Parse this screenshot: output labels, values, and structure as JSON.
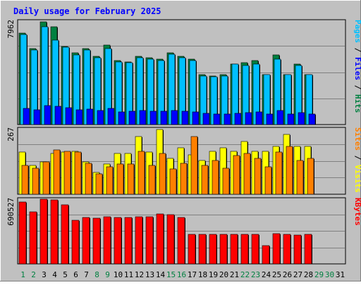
{
  "chart_data": {
    "type": "bar",
    "title": "Daily usage for February 2025",
    "days": [
      "1",
      "2",
      "3",
      "4",
      "5",
      "6",
      "7",
      "8",
      "9",
      "10",
      "11",
      "12",
      "13",
      "14",
      "15",
      "16",
      "17",
      "18",
      "19",
      "20",
      "21",
      "22",
      "23",
      "24",
      "25",
      "26",
      "27",
      "28",
      "29",
      "30",
      "31"
    ],
    "weekend_days": [
      "1",
      "2",
      "8",
      "9",
      "15",
      "16",
      "22",
      "23",
      "29",
      "30"
    ],
    "days_with_data": 28,
    "panels": [
      {
        "name": "hits",
        "max_label": "7962",
        "ymax": 8000,
        "right_label": [
          "Pages",
          "Files",
          "Hits"
        ],
        "series": [
          {
            "name": "Hits",
            "color": "#008040",
            "values": [
              7100,
              5900,
              8000,
              7600,
              6100,
              5600,
              5900,
              5300,
              6200,
              5000,
              4900,
              5300,
              5200,
              5100,
              5600,
              5300,
              5100,
              3900,
              3800,
              3900,
              4700,
              4800,
              5000,
              3900,
              5400,
              3900,
              4700,
              3900
            ]
          },
          {
            "name": "Files",
            "color": "#00C0FF",
            "values": [
              7000,
              5800,
              7600,
              6600,
              6000,
              5400,
              5800,
              5200,
              5900,
              4900,
              4800,
              5200,
              5100,
              5000,
              5500,
              5200,
              5000,
              3800,
              3700,
              3800,
              4700,
              4600,
              4700,
              3900,
              5100,
              3900,
              4600,
              3900
            ]
          },
          {
            "name": "Pages",
            "color": "#0000FF",
            "values": [
              1250,
              1150,
              1500,
              1400,
              1300,
              1150,
              1200,
              1100,
              1250,
              1000,
              1050,
              1100,
              1050,
              1050,
              1100,
              1050,
              1000,
              850,
              800,
              800,
              900,
              950,
              1000,
              800,
              1100,
              800,
              950,
              800
            ]
          }
        ]
      },
      {
        "name": "visits",
        "max_label": "267",
        "ymax": 270,
        "right_label": [
          "Sites",
          "Visits"
        ],
        "series": [
          {
            "name": "Visits",
            "color": "#FFFF00",
            "values": [
              175,
              120,
              135,
              170,
              175,
              180,
              135,
              90,
              125,
              170,
              170,
              240,
              175,
              270,
              150,
              195,
              165,
              140,
              180,
              195,
              180,
              220,
              180,
              180,
              200,
              250,
              200,
              200
            ]
          },
          {
            "name": "Sites",
            "color": "#FF8000",
            "values": [
              120,
              110,
              135,
              185,
              180,
              175,
              130,
              85,
              115,
              125,
              125,
              180,
              120,
              170,
              105,
              130,
              240,
              120,
              140,
              110,
              160,
              170,
              150,
              115,
              175,
              200,
              140,
              150
            ]
          }
        ]
      },
      {
        "name": "kbytes",
        "max_label": "690527",
        "ymax": 690527,
        "right_label": [
          "KBytes"
        ],
        "series": [
          {
            "name": "KBytes",
            "color": "#FF0000",
            "values": [
              670000,
              560000,
              700000,
              690000,
              640000,
              470000,
              500000,
              490000,
              510000,
              500000,
              500000,
              510000,
              510000,
              540000,
              530000,
              500000,
              320000,
              320000,
              320000,
              320000,
              320000,
              320000,
              320000,
              200000,
              330000,
              320000,
              310000,
              320000
            ]
          }
        ]
      }
    ]
  }
}
